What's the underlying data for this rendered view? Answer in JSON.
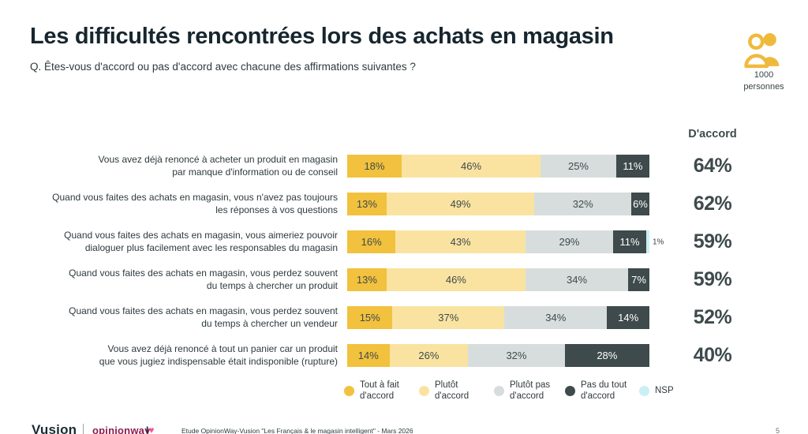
{
  "header": {
    "title": "Les difficultés rencontrées lors des achats en magasin",
    "question": "Q. Êtes-vous d'accord ou pas d'accord avec chacune des affirmations suivantes ?",
    "sample": {
      "count": "1000",
      "unit": "personnes"
    }
  },
  "colors": {
    "title_text": "#17262e",
    "body_text": "#2e3a3e",
    "agree_text": "#3e4a4b",
    "icon_yellow": "#efba3c"
  },
  "chart_data": {
    "type": "bar",
    "stacked": true,
    "orientation": "horizontal",
    "unit": "%",
    "legend_position": "bottom",
    "xlim": [
      0,
      100
    ],
    "categories": [
      "Vous avez déjà renoncé à acheter un produit en magasin par manque d'information ou de conseil",
      "Quand vous faites des achats en magasin, vous n'avez pas toujours les réponses à vos questions",
      "Quand vous faites des achats en magasin, vous aimeriez pouvoir dialoguer plus facilement avec les responsables du magasin",
      "Quand vous faites des achats en magasin, vous perdez souvent du temps à chercher un produit",
      "Quand vous faites des achats en magasin, vous perdez souvent du temps à chercher un vendeur",
      "Vous avez déjà renoncé à tout un panier car un produit que vous jugiez indispensable était indisponible (rupture)"
    ],
    "category_lines": [
      [
        "Vous avez déjà renoncé à acheter un produit en magasin",
        "par manque d'information ou de conseil"
      ],
      [
        "Quand vous faites des achats en magasin, vous n'avez pas toujours",
        "les réponses à vos questions"
      ],
      [
        "Quand vous faites des achats en magasin, vous aimeriez pouvoir",
        "dialoguer plus facilement avec les responsables du magasin"
      ],
      [
        "Quand vous faites des achats en magasin, vous perdez souvent",
        "du temps à chercher un produit"
      ],
      [
        "Quand vous faites des achats en magasin, vous perdez souvent",
        "du temps à chercher un vendeur"
      ],
      [
        "Vous avez déjà renoncé à tout un panier car un produit",
        "que vous jugiez indispensable était indisponible (rupture)"
      ]
    ],
    "series": [
      {
        "name": "Tout à fait d'accord",
        "color": "#f2c13d",
        "values": [
          18,
          13,
          16,
          13,
          15,
          14
        ]
      },
      {
        "name": "Plutôt d'accord",
        "color": "#fae3a1",
        "values": [
          46,
          49,
          43,
          46,
          37,
          26
        ]
      },
      {
        "name": "Plutôt pas d'accord",
        "color": "#d7dddc",
        "values": [
          25,
          32,
          29,
          34,
          34,
          32
        ]
      },
      {
        "name": "Pas du tout d'accord",
        "color": "#3e4a4b",
        "text_color": "#ffffff",
        "values": [
          11,
          6,
          11,
          7,
          14,
          28
        ]
      },
      {
        "name": "NSP",
        "color": "#c9eff4",
        "values": [
          0,
          0,
          1,
          0,
          0,
          0
        ]
      }
    ],
    "agree_column": {
      "header": "D'accord",
      "values": [
        "64%",
        "62%",
        "59%",
        "59%",
        "52%",
        "40%"
      ]
    }
  },
  "legend": [
    {
      "icon": "legend-dot-tout-a-fait",
      "color": "#f2c13d",
      "lines": [
        "Tout à fait",
        "d'accord"
      ]
    },
    {
      "icon": "legend-dot-plutot",
      "color": "#fae3a1",
      "lines": [
        "Plutôt",
        "d'accord"
      ]
    },
    {
      "icon": "legend-dot-plutot-pas",
      "color": "#d7dddc",
      "lines": [
        "Plutôt pas",
        "d'accord"
      ]
    },
    {
      "icon": "legend-dot-pas-du-tout",
      "color": "#3e4a4b",
      "lines": [
        "Pas du tout",
        "d'accord"
      ]
    },
    {
      "icon": "legend-dot-nsp",
      "color": "#c9eff4",
      "lines": [
        "NSP"
      ]
    }
  ],
  "footer": {
    "vusion": "Vusion",
    "opinionway": "opinionway",
    "iheart_i": "I",
    "iheart_heart": "♥",
    "source": "Etude OpinionWay-Vusion \"Les Français & le magasin intelligent\" - Mars 2026",
    "page": "5"
  }
}
